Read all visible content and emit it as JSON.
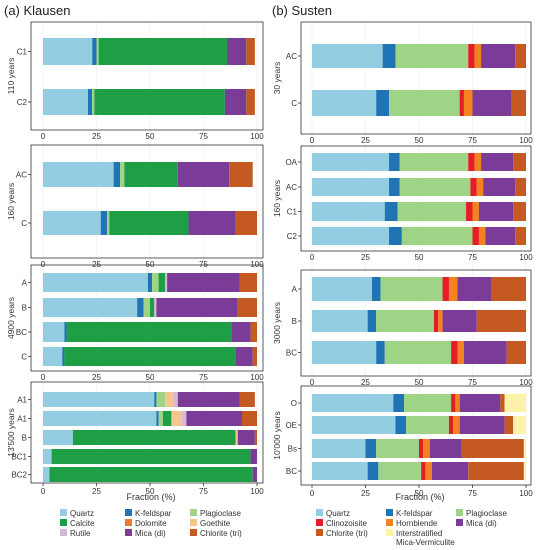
{
  "components": [
    {
      "key": "quartz",
      "name": "Quartz",
      "color": "#93cde2"
    },
    {
      "key": "kfeld",
      "name": "K-feldspar",
      "color": "#2174b4"
    },
    {
      "key": "plag",
      "name": "Plagioclase",
      "color": "#9fd486"
    },
    {
      "key": "calcite",
      "name": "Calcite",
      "color": "#1f9f45"
    },
    {
      "key": "dolomite",
      "name": "Dolomite",
      "color": "#ee7b27"
    },
    {
      "key": "goethite",
      "name": "Goethite",
      "color": "#f6c690"
    },
    {
      "key": "rutile",
      "name": "Rutile",
      "color": "#d7b6d9"
    },
    {
      "key": "mica",
      "name": "Mica (di)",
      "color": "#7b3c98"
    },
    {
      "key": "chlorite",
      "name": "Chlorite (tri)",
      "color": "#c45a21"
    },
    {
      "key": "clinozoisite",
      "name": "Clinozoisite",
      "color": "#e21f26"
    },
    {
      "key": "hornblende",
      "name": "Hornblende",
      "color": "#f58220"
    },
    {
      "key": "imv",
      "name": "Interstratified Mica-Vermiculite",
      "color": "#fdf2a9"
    }
  ],
  "chart_data": [
    {
      "type": "bar",
      "title": "(a) Klausen",
      "xlabel": "Fraction (%)",
      "xlim": [
        0,
        100
      ],
      "ticks": [
        0,
        25,
        50,
        75,
        100
      ],
      "legend": [
        "Quartz",
        "K-feldspar",
        "Plagioclase",
        "Calcite",
        "Dolomite",
        "Goethite",
        "Rutile",
        "Mica (di)",
        "Chlorite (tri)"
      ],
      "groups": [
        {
          "label": "110 years",
          "samples": [
            {
              "name": "C1",
              "parts": [
                [
                  "quartz",
                  23
                ],
                [
                  "kfeld",
                  2
                ],
                [
                  "plag",
                  1
                ],
                [
                  "calcite",
                  60
                ],
                [
                  "mica",
                  9
                ],
                [
                  "chlorite",
                  4
                ]
              ]
            },
            {
              "name": "C2",
              "parts": [
                [
                  "quartz",
                  21
                ],
                [
                  "kfeld",
                  2
                ],
                [
                  "plag",
                  1
                ],
                [
                  "calcite",
                  61
                ],
                [
                  "mica",
                  10
                ],
                [
                  "chlorite",
                  4
                ]
              ]
            }
          ]
        },
        {
          "label": "160 years",
          "samples": [
            {
              "name": "AC",
              "parts": [
                [
                  "quartz",
                  33
                ],
                [
                  "kfeld",
                  3
                ],
                [
                  "plag",
                  2
                ],
                [
                  "calcite",
                  25
                ],
                [
                  "mica",
                  24
                ],
                [
                  "chlorite",
                  11
                ]
              ]
            },
            {
              "name": "C",
              "parts": [
                [
                  "quartz",
                  27
                ],
                [
                  "kfeld",
                  3
                ],
                [
                  "plag",
                  1
                ],
                [
                  "calcite",
                  37
                ],
                [
                  "mica",
                  22
                ],
                [
                  "chlorite",
                  10
                ]
              ]
            }
          ]
        },
        {
          "label": "4900 years",
          "samples": [
            {
              "name": "A",
              "parts": [
                [
                  "quartz",
                  49
                ],
                [
                  "kfeld",
                  2
                ],
                [
                  "plag",
                  3
                ],
                [
                  "calcite",
                  3
                ],
                [
                  "rutile",
                  1
                ],
                [
                  "mica",
                  34
                ],
                [
                  "chlorite",
                  8
                ]
              ]
            },
            {
              "name": "B",
              "parts": [
                [
                  "quartz",
                  44
                ],
                [
                  "kfeld",
                  3
                ],
                [
                  "plag",
                  3
                ],
                [
                  "calcite",
                  2
                ],
                [
                  "rutile",
                  1
                ],
                [
                  "mica",
                  38
                ],
                [
                  "chlorite",
                  9
                ]
              ]
            },
            {
              "name": "BC",
              "parts": [
                [
                  "quartz",
                  10
                ],
                [
                  "kfeld",
                  1
                ],
                [
                  "calcite",
                  77
                ],
                [
                  "mica",
                  9
                ],
                [
                  "chlorite",
                  3
                ]
              ]
            },
            {
              "name": "C",
              "parts": [
                [
                  "quartz",
                  9
                ],
                [
                  "kfeld",
                  1
                ],
                [
                  "calcite",
                  80
                ],
                [
                  "mica",
                  8
                ],
                [
                  "chlorite",
                  2
                ]
              ]
            }
          ]
        },
        {
          "label": "13'500 years",
          "samples": [
            {
              "name": "A1",
              "parts": [
                [
                  "quartz",
                  52
                ],
                [
                  "kfeld",
                  1
                ],
                [
                  "plag",
                  4
                ],
                [
                  "goethite",
                  4
                ],
                [
                  "rutile",
                  2
                ],
                [
                  "mica",
                  29
                ],
                [
                  "chlorite",
                  7
                ]
              ]
            },
            {
              "name": "A1",
              "parts": [
                [
                  "quartz",
                  53
                ],
                [
                  "kfeld",
                  1
                ],
                [
                  "plag",
                  2
                ],
                [
                  "calcite",
                  4
                ],
                [
                  "goethite",
                  5
                ],
                [
                  "rutile",
                  2
                ],
                [
                  "mica",
                  26
                ],
                [
                  "chlorite",
                  7
                ]
              ]
            },
            {
              "name": "B",
              "parts": [
                [
                  "quartz",
                  14
                ],
                [
                  "calcite",
                  76
                ],
                [
                  "goethite",
                  1
                ],
                [
                  "mica",
                  8
                ],
                [
                  "chlorite",
                  1
                ]
              ]
            },
            {
              "name": "BC1",
              "parts": [
                [
                  "quartz",
                  4
                ],
                [
                  "calcite",
                  93
                ],
                [
                  "mica",
                  3
                ]
              ]
            },
            {
              "name": "BC2",
              "parts": [
                [
                  "quartz",
                  3
                ],
                [
                  "calcite",
                  95
                ],
                [
                  "mica",
                  2
                ]
              ]
            }
          ]
        }
      ]
    },
    {
      "type": "bar",
      "title": "(b) Susten",
      "xlabel": "Fraction (%)",
      "xlim": [
        0,
        100
      ],
      "ticks": [
        0,
        25,
        50,
        75,
        100
      ],
      "legend": [
        "Quartz",
        "K-feldspar",
        "Plagioclase",
        "Clinozoisite",
        "Hornblende",
        "Mica (di)",
        "Chlorite (tri)",
        "Interstratified Mica-Vermiculite"
      ],
      "groups": [
        {
          "label": "30 years",
          "samples": [
            {
              "name": "AC",
              "parts": [
                [
                  "quartz",
                  33
                ],
                [
                  "kfeld",
                  6
                ],
                [
                  "plag",
                  34
                ],
                [
                  "clinozoisite",
                  3
                ],
                [
                  "hornblende",
                  3
                ],
                [
                  "mica",
                  16
                ],
                [
                  "chlorite",
                  5
                ]
              ]
            },
            {
              "name": "C",
              "parts": [
                [
                  "quartz",
                  30
                ],
                [
                  "kfeld",
                  6
                ],
                [
                  "plag",
                  33
                ],
                [
                  "clinozoisite",
                  2
                ],
                [
                  "hornblende",
                  4
                ],
                [
                  "mica",
                  18
                ],
                [
                  "chlorite",
                  7
                ]
              ]
            }
          ]
        },
        {
          "label": "160 years",
          "samples": [
            {
              "name": "OA",
              "parts": [
                [
                  "quartz",
                  36
                ],
                [
                  "kfeld",
                  5
                ],
                [
                  "plag",
                  32
                ],
                [
                  "clinozoisite",
                  3
                ],
                [
                  "hornblende",
                  3
                ],
                [
                  "mica",
                  15
                ],
                [
                  "chlorite",
                  6
                ]
              ]
            },
            {
              "name": "AC",
              "parts": [
                [
                  "quartz",
                  36
                ],
                [
                  "kfeld",
                  5
                ],
                [
                  "plag",
                  33
                ],
                [
                  "clinozoisite",
                  3
                ],
                [
                  "hornblende",
                  3
                ],
                [
                  "mica",
                  15
                ],
                [
                  "chlorite",
                  5
                ]
              ]
            },
            {
              "name": "C1",
              "parts": [
                [
                  "quartz",
                  34
                ],
                [
                  "kfeld",
                  6
                ],
                [
                  "plag",
                  32
                ],
                [
                  "clinozoisite",
                  3
                ],
                [
                  "hornblende",
                  3
                ],
                [
                  "mica",
                  16
                ],
                [
                  "chlorite",
                  6
                ]
              ]
            },
            {
              "name": "C2",
              "parts": [
                [
                  "quartz",
                  36
                ],
                [
                  "kfeld",
                  6
                ],
                [
                  "plag",
                  33
                ],
                [
                  "clinozoisite",
                  3
                ],
                [
                  "hornblende",
                  3
                ],
                [
                  "mica",
                  14
                ],
                [
                  "chlorite",
                  5
                ]
              ]
            }
          ]
        },
        {
          "label": "3000 years",
          "samples": [
            {
              "name": "A",
              "parts": [
                [
                  "quartz",
                  28
                ],
                [
                  "kfeld",
                  4
                ],
                [
                  "plag",
                  29
                ],
                [
                  "clinozoisite",
                  3
                ],
                [
                  "hornblende",
                  4
                ],
                [
                  "mica",
                  16
                ],
                [
                  "chlorite",
                  16
                ]
              ]
            },
            {
              "name": "B",
              "parts": [
                [
                  "quartz",
                  26
                ],
                [
                  "kfeld",
                  4
                ],
                [
                  "plag",
                  27
                ],
                [
                  "clinozoisite",
                  2
                ],
                [
                  "hornblende",
                  2
                ],
                [
                  "mica",
                  16
                ],
                [
                  "chlorite",
                  23
                ]
              ]
            },
            {
              "name": "BC",
              "parts": [
                [
                  "quartz",
                  30
                ],
                [
                  "kfeld",
                  4
                ],
                [
                  "plag",
                  31
                ],
                [
                  "clinozoisite",
                  3
                ],
                [
                  "hornblende",
                  3
                ],
                [
                  "mica",
                  20
                ],
                [
                  "chlorite",
                  9
                ]
              ]
            }
          ]
        },
        {
          "label": "10'000 years",
          "samples": [
            {
              "name": "O",
              "parts": [
                [
                  "quartz",
                  38
                ],
                [
                  "kfeld",
                  5
                ],
                [
                  "plag",
                  22
                ],
                [
                  "clinozoisite",
                  2
                ],
                [
                  "hornblende",
                  2
                ],
                [
                  "mica",
                  19
                ],
                [
                  "chlorite",
                  2
                ],
                [
                  "imv",
                  10
                ]
              ]
            },
            {
              "name": "OE",
              "parts": [
                [
                  "quartz",
                  39
                ],
                [
                  "kfeld",
                  5
                ],
                [
                  "plag",
                  20
                ],
                [
                  "clinozoisite",
                  2
                ],
                [
                  "hornblende",
                  3
                ],
                [
                  "mica",
                  21
                ],
                [
                  "chlorite",
                  4
                ],
                [
                  "imv",
                  6
                ]
              ]
            },
            {
              "name": "Bs",
              "parts": [
                [
                  "quartz",
                  25
                ],
                [
                  "kfeld",
                  5
                ],
                [
                  "plag",
                  20
                ],
                [
                  "clinozoisite",
                  2
                ],
                [
                  "hornblende",
                  3
                ],
                [
                  "mica",
                  15
                ],
                [
                  "chlorite",
                  29
                ],
                [
                  "imv",
                  1
                ]
              ]
            },
            {
              "name": "BC",
              "parts": [
                [
                  "quartz",
                  26
                ],
                [
                  "kfeld",
                  5
                ],
                [
                  "plag",
                  20
                ],
                [
                  "clinozoisite",
                  2
                ],
                [
                  "hornblende",
                  3
                ],
                [
                  "mica",
                  17
                ],
                [
                  "chlorite",
                  26
                ],
                [
                  "imv",
                  1
                ]
              ]
            }
          ]
        }
      ]
    }
  ]
}
